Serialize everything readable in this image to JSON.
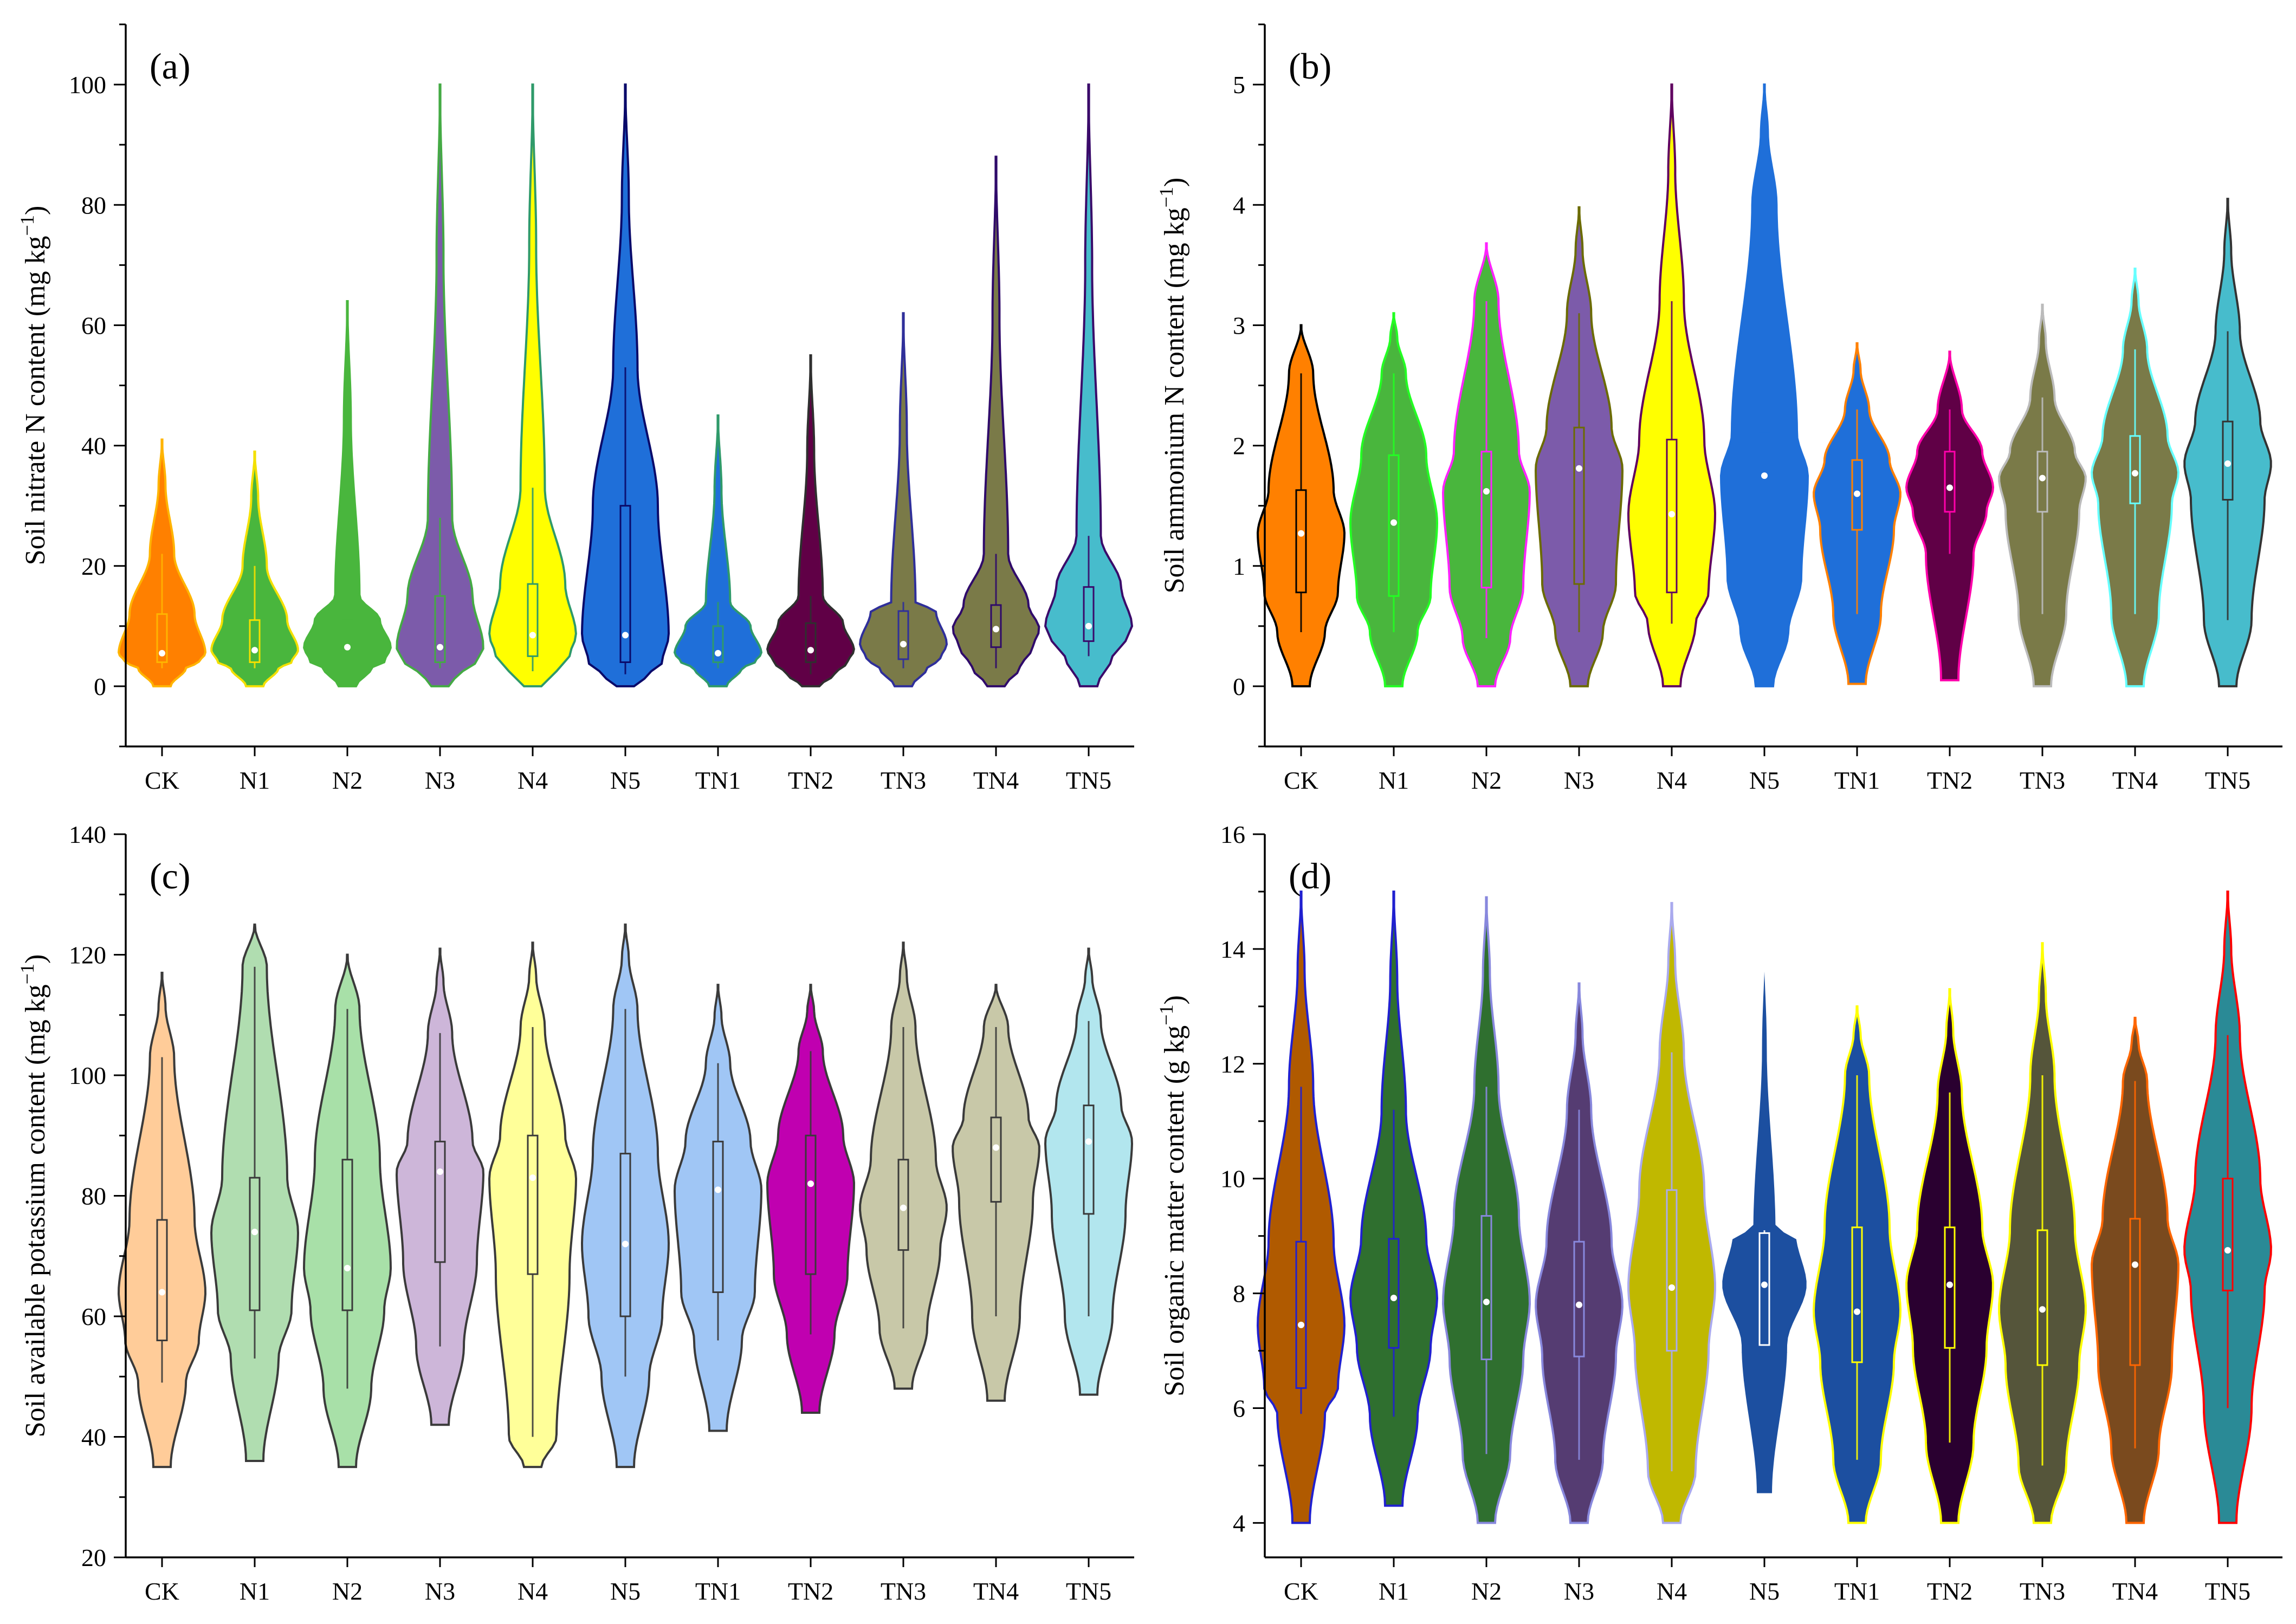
{
  "figure": {
    "panels": [
      {
        "letter": "(a)",
        "ylabel": "Soil nitrate N content (mg kg",
        "ylabel_sup": "−1",
        "ylabel_end": ")",
        "yticks": [
          0,
          20,
          40,
          60,
          80,
          100
        ],
        "ylim": [
          -10,
          110
        ],
        "minor_step": 10
      },
      {
        "letter": "(b)",
        "ylabel": "Soil ammonium N content (mg kg",
        "ylabel_sup": "−1",
        "ylabel_end": ")",
        "yticks": [
          0,
          1,
          2,
          3,
          4,
          5
        ],
        "ylim": [
          -0.5,
          5.5
        ],
        "minor_step": 0.5
      },
      {
        "letter": "(c)",
        "ylabel": "Soil available potassium content (mg kg",
        "ylabel_sup": "−1",
        "ylabel_end": ")",
        "yticks": [
          20,
          40,
          60,
          80,
          100,
          120,
          140
        ],
        "ylim": [
          20,
          140
        ],
        "minor_step": 10
      },
      {
        "letter": "(d)",
        "ylabel": "Soil organic matter content (g kg",
        "ylabel_sup": "−1",
        "ylabel_end": ")",
        "yticks": [
          4,
          6,
          8,
          10,
          12,
          14,
          16
        ],
        "ylim": [
          3.4,
          16
        ],
        "minor_step": 1
      }
    ]
  },
  "chart_data": [
    {
      "type": "violin",
      "title": "(a)",
      "xlabel": "",
      "ylabel": "Soil nitrate N content (mg kg−1)",
      "ylim": [
        -10,
        110
      ],
      "categories": [
        "CK",
        "N1",
        "N2",
        "N3",
        "N4",
        "N5",
        "TN1",
        "TN2",
        "TN3",
        "TN4",
        "TN5"
      ],
      "fill_colors": [
        "#FF8000",
        "#49B63D",
        "#49B63D",
        "#7C5BAA",
        "#FFFF00",
        "#1F6FD9",
        "#1F6FD9",
        "#600046",
        "#7A7A48",
        "#7A7A48",
        "#47BCCC"
      ],
      "outline_colors": [
        "#FFB400",
        "#F3E000",
        "#49B63D",
        "#44AA44",
        "#2F9A6A",
        "#0A0A6A",
        "#2F9A6A",
        "#2F2F2F",
        "#2F2F9A",
        "#2F0A6A",
        "#3A0A6A"
      ],
      "min": [
        0,
        0,
        0,
        0,
        0,
        0,
        0,
        0,
        0,
        0,
        0
      ],
      "max": [
        41,
        39,
        64,
        100,
        100,
        100,
        45,
        55,
        62,
        88,
        100
      ],
      "median": [
        5.5,
        6,
        6.5,
        6.5,
        8.5,
        8.5,
        5.5,
        6,
        7,
        9.5,
        10
      ],
      "q1": [
        4,
        4,
        4,
        4,
        5,
        4,
        4,
        4,
        4.5,
        6.5,
        7.5
      ],
      "q3": [
        12,
        11,
        11,
        15,
        17,
        30,
        10,
        10.5,
        12.5,
        13.5,
        16.5
      ],
      "whisker_low": [
        3,
        3,
        3,
        3,
        2.5,
        2,
        3,
        2,
        3,
        3,
        5
      ],
      "whisker_high": [
        22,
        20,
        15,
        28,
        33,
        53,
        14,
        15,
        14,
        22,
        25
      ]
    },
    {
      "type": "violin",
      "title": "(b)",
      "xlabel": "",
      "ylabel": "Soil ammonium N content (mg kg−1)",
      "ylim": [
        -0.5,
        5.5
      ],
      "categories": [
        "CK",
        "N1",
        "N2",
        "N3",
        "N4",
        "N5",
        "TN1",
        "TN2",
        "TN3",
        "TN4",
        "TN5"
      ],
      "fill_colors": [
        "#FF8000",
        "#49B63D",
        "#49B63D",
        "#7C5BAA",
        "#FFFF00",
        "#1F6FD9",
        "#1F6FD9",
        "#600046",
        "#7A7A48",
        "#7A7A48",
        "#47BCCC"
      ],
      "outline_colors": [
        "#000000",
        "#22FF22",
        "#FF22FF",
        "#6B6B00",
        "#600060",
        "#1F6FD9",
        "#FF8000",
        "#FF00AA",
        "#BBBBBB",
        "#66FFFF",
        "#333333"
      ],
      "min": [
        0,
        0,
        0,
        0,
        0,
        0,
        0.02,
        0.05,
        0,
        0,
        0
      ],
      "max": [
        3.0,
        3.1,
        3.68,
        3.98,
        5,
        5,
        2.85,
        2.78,
        3.17,
        3.47,
        4.05
      ],
      "median": [
        1.27,
        1.36,
        1.62,
        1.81,
        1.43,
        1.75,
        1.6,
        1.65,
        1.73,
        1.77,
        1.85
      ],
      "q1": [
        0.78,
        0.75,
        0.82,
        0.85,
        0.78,
        0.9,
        1.3,
        1.45,
        1.45,
        1.52,
        1.55
      ],
      "q3": [
        1.63,
        1.92,
        1.95,
        2.15,
        2.05,
        2.1,
        1.88,
        1.95,
        1.95,
        2.08,
        2.2
      ],
      "whisker_low": [
        0.45,
        0.45,
        0.4,
        0.45,
        0.52,
        0.45,
        0.6,
        1.1,
        0.6,
        0.6,
        0.55
      ],
      "whisker_high": [
        2.6,
        2.6,
        3.2,
        3.1,
        3.2,
        4.0,
        2.3,
        2.3,
        2.4,
        2.8,
        2.95
      ]
    },
    {
      "type": "violin",
      "title": "(c)",
      "xlabel": "",
      "ylabel": "Soil available potassium content (mg kg−1)",
      "ylim": [
        20,
        140
      ],
      "categories": [
        "CK",
        "N1",
        "N2",
        "N3",
        "N4",
        "N5",
        "TN1",
        "TN2",
        "TN3",
        "TN4",
        "TN5"
      ],
      "fill_colors": [
        "#FFCC99",
        "#B0DDB0",
        "#A8E0A8",
        "#CDB6D9",
        "#FFFF99",
        "#A0C6F5",
        "#A0C6F5",
        "#C000B0",
        "#C8C8A8",
        "#C8C8A8",
        "#B2E6EE"
      ],
      "outline_colors": [
        "#3A3A3A",
        "#3A3A3A",
        "#3A3A3A",
        "#3A3A3A",
        "#3A3A3A",
        "#3A3A3A",
        "#3A3A3A",
        "#3A3A3A",
        "#3A3A3A",
        "#3A3A3A",
        "#3A3A3A"
      ],
      "min": [
        35,
        36,
        35,
        42,
        35,
        35,
        41,
        44,
        48,
        46,
        47
      ],
      "max": [
        117,
        125,
        120,
        121,
        122,
        125,
        115,
        115,
        122,
        115,
        121
      ],
      "median": [
        64,
        74,
        68,
        84,
        83,
        72,
        81,
        82,
        78,
        88,
        89
      ],
      "q1": [
        56,
        61,
        61,
        69,
        67,
        60,
        64,
        67,
        71,
        79,
        77
      ],
      "q3": [
        76,
        83,
        86,
        89,
        90,
        87,
        89,
        90,
        86,
        93,
        95
      ],
      "whisker_low": [
        49,
        53,
        48,
        55,
        40,
        50,
        56,
        57,
        58,
        60,
        60
      ],
      "whisker_high": [
        103,
        118,
        111,
        107,
        108,
        111,
        102,
        104,
        108,
        108,
        109
      ]
    },
    {
      "type": "violin",
      "title": "(d)",
      "xlabel": "",
      "ylabel": "Soil organic matter content (g kg−1)",
      "ylim": [
        3.4,
        16
      ],
      "categories": [
        "CK",
        "N1",
        "N2",
        "N3",
        "N4",
        "N5",
        "TN1",
        "TN2",
        "TN3",
        "TN4",
        "TN5"
      ],
      "fill_colors": [
        "#B05A00",
        "#2F6F2F",
        "#2F6F2F",
        "#553C72",
        "#C0B800",
        "#1C4FA0",
        "#1C4FA0",
        "#2A0030",
        "#55553A",
        "#7A4A1E",
        "#2A8A96"
      ],
      "outline_colors": [
        "#2020D0",
        "#2020D0",
        "#8888DD",
        "#8888DD",
        "#AAAAEE",
        "#FFFFFF",
        "#FFFF00",
        "#FFFF00",
        "#FFFF00",
        "#FF6600",
        "#FF0000"
      ],
      "min": [
        4,
        4.3,
        4,
        4,
        4,
        4.5,
        4,
        4,
        4,
        4,
        4
      ],
      "max": [
        15,
        15,
        14.9,
        13.4,
        14.8,
        14.4,
        13,
        13.3,
        14.1,
        12.8,
        15
      ],
      "median": [
        7.45,
        7.92,
        7.85,
        7.8,
        8.1,
        8.15,
        7.68,
        8.15,
        7.72,
        8.5,
        8.75
      ],
      "q1": [
        6.35,
        7.05,
        6.85,
        6.9,
        7.0,
        7.1,
        6.8,
        7.05,
        6.75,
        6.75,
        8.05
      ],
      "q3": [
        8.9,
        8.95,
        9.35,
        8.9,
        9.8,
        9.05,
        9.15,
        9.15,
        9.1,
        9.3,
        10.0
      ],
      "whisker_low": [
        5.9,
        5.85,
        5.2,
        5.1,
        4.9,
        7.1,
        5.1,
        5.4,
        5.0,
        5.3,
        6.0
      ],
      "whisker_high": [
        11.6,
        11.2,
        11.6,
        11.2,
        12.2,
        9.1,
        11.8,
        11.5,
        11.8,
        11.7,
        12.5
      ]
    }
  ]
}
